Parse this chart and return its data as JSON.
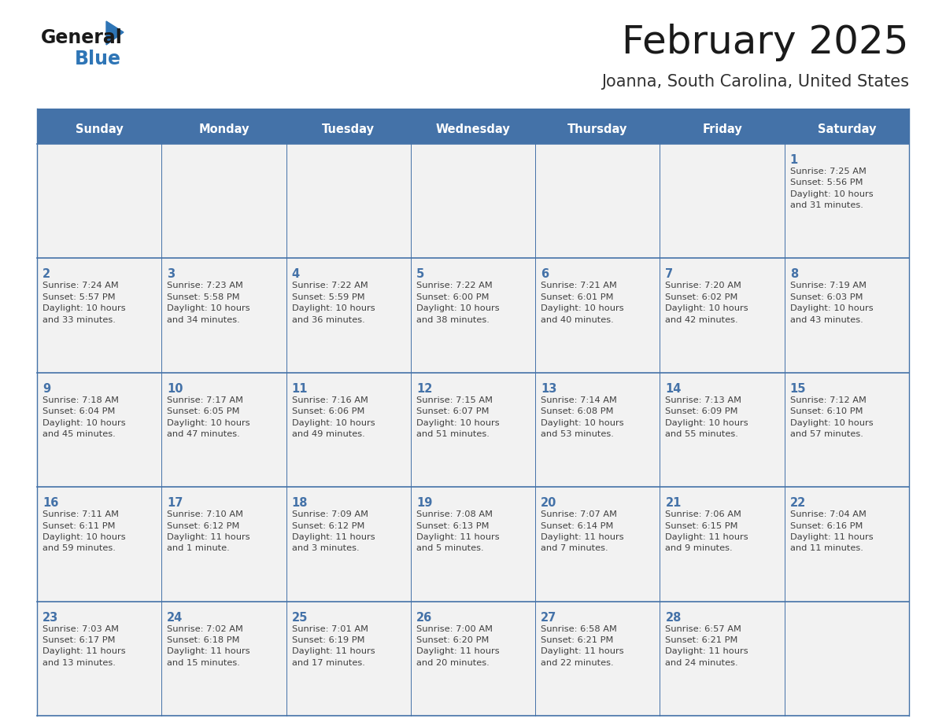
{
  "title": "February 2025",
  "subtitle": "Joanna, South Carolina, United States",
  "header_bg_color": "#4472a8",
  "header_text_color": "#ffffff",
  "day_names": [
    "Sunday",
    "Monday",
    "Tuesday",
    "Wednesday",
    "Thursday",
    "Friday",
    "Saturday"
  ],
  "cell_bg_color": "#f2f2f2",
  "border_color": "#4472a8",
  "day_num_color": "#4472a8",
  "text_color": "#404040",
  "title_color": "#1a1a1a",
  "subtitle_color": "#333333",
  "logo_general_color": "#1a1a1a",
  "logo_blue_color": "#2e75b6",
  "calendar_data": [
    [
      {
        "day": null,
        "info": null
      },
      {
        "day": null,
        "info": null
      },
      {
        "day": null,
        "info": null
      },
      {
        "day": null,
        "info": null
      },
      {
        "day": null,
        "info": null
      },
      {
        "day": null,
        "info": null
      },
      {
        "day": 1,
        "info": "Sunrise: 7:25 AM\nSunset: 5:56 PM\nDaylight: 10 hours\nand 31 minutes."
      }
    ],
    [
      {
        "day": 2,
        "info": "Sunrise: 7:24 AM\nSunset: 5:57 PM\nDaylight: 10 hours\nand 33 minutes."
      },
      {
        "day": 3,
        "info": "Sunrise: 7:23 AM\nSunset: 5:58 PM\nDaylight: 10 hours\nand 34 minutes."
      },
      {
        "day": 4,
        "info": "Sunrise: 7:22 AM\nSunset: 5:59 PM\nDaylight: 10 hours\nand 36 minutes."
      },
      {
        "day": 5,
        "info": "Sunrise: 7:22 AM\nSunset: 6:00 PM\nDaylight: 10 hours\nand 38 minutes."
      },
      {
        "day": 6,
        "info": "Sunrise: 7:21 AM\nSunset: 6:01 PM\nDaylight: 10 hours\nand 40 minutes."
      },
      {
        "day": 7,
        "info": "Sunrise: 7:20 AM\nSunset: 6:02 PM\nDaylight: 10 hours\nand 42 minutes."
      },
      {
        "day": 8,
        "info": "Sunrise: 7:19 AM\nSunset: 6:03 PM\nDaylight: 10 hours\nand 43 minutes."
      }
    ],
    [
      {
        "day": 9,
        "info": "Sunrise: 7:18 AM\nSunset: 6:04 PM\nDaylight: 10 hours\nand 45 minutes."
      },
      {
        "day": 10,
        "info": "Sunrise: 7:17 AM\nSunset: 6:05 PM\nDaylight: 10 hours\nand 47 minutes."
      },
      {
        "day": 11,
        "info": "Sunrise: 7:16 AM\nSunset: 6:06 PM\nDaylight: 10 hours\nand 49 minutes."
      },
      {
        "day": 12,
        "info": "Sunrise: 7:15 AM\nSunset: 6:07 PM\nDaylight: 10 hours\nand 51 minutes."
      },
      {
        "day": 13,
        "info": "Sunrise: 7:14 AM\nSunset: 6:08 PM\nDaylight: 10 hours\nand 53 minutes."
      },
      {
        "day": 14,
        "info": "Sunrise: 7:13 AM\nSunset: 6:09 PM\nDaylight: 10 hours\nand 55 minutes."
      },
      {
        "day": 15,
        "info": "Sunrise: 7:12 AM\nSunset: 6:10 PM\nDaylight: 10 hours\nand 57 minutes."
      }
    ],
    [
      {
        "day": 16,
        "info": "Sunrise: 7:11 AM\nSunset: 6:11 PM\nDaylight: 10 hours\nand 59 minutes."
      },
      {
        "day": 17,
        "info": "Sunrise: 7:10 AM\nSunset: 6:12 PM\nDaylight: 11 hours\nand 1 minute."
      },
      {
        "day": 18,
        "info": "Sunrise: 7:09 AM\nSunset: 6:12 PM\nDaylight: 11 hours\nand 3 minutes."
      },
      {
        "day": 19,
        "info": "Sunrise: 7:08 AM\nSunset: 6:13 PM\nDaylight: 11 hours\nand 5 minutes."
      },
      {
        "day": 20,
        "info": "Sunrise: 7:07 AM\nSunset: 6:14 PM\nDaylight: 11 hours\nand 7 minutes."
      },
      {
        "day": 21,
        "info": "Sunrise: 7:06 AM\nSunset: 6:15 PM\nDaylight: 11 hours\nand 9 minutes."
      },
      {
        "day": 22,
        "info": "Sunrise: 7:04 AM\nSunset: 6:16 PM\nDaylight: 11 hours\nand 11 minutes."
      }
    ],
    [
      {
        "day": 23,
        "info": "Sunrise: 7:03 AM\nSunset: 6:17 PM\nDaylight: 11 hours\nand 13 minutes."
      },
      {
        "day": 24,
        "info": "Sunrise: 7:02 AM\nSunset: 6:18 PM\nDaylight: 11 hours\nand 15 minutes."
      },
      {
        "day": 25,
        "info": "Sunrise: 7:01 AM\nSunset: 6:19 PM\nDaylight: 11 hours\nand 17 minutes."
      },
      {
        "day": 26,
        "info": "Sunrise: 7:00 AM\nSunset: 6:20 PM\nDaylight: 11 hours\nand 20 minutes."
      },
      {
        "day": 27,
        "info": "Sunrise: 6:58 AM\nSunset: 6:21 PM\nDaylight: 11 hours\nand 22 minutes."
      },
      {
        "day": 28,
        "info": "Sunrise: 6:57 AM\nSunset: 6:21 PM\nDaylight: 11 hours\nand 24 minutes."
      },
      {
        "day": null,
        "info": null
      }
    ]
  ]
}
